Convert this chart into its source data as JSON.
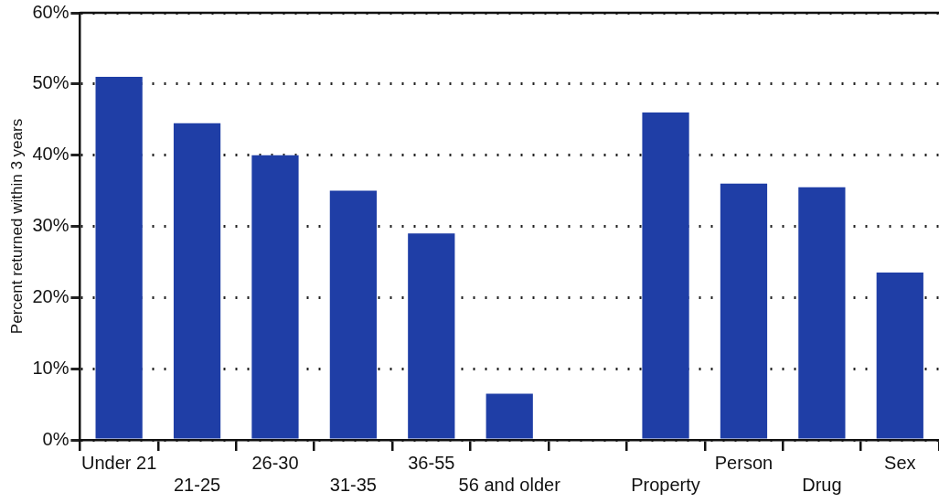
{
  "chart_data": {
    "type": "bar",
    "ylabel": "Percent returned within 3 years",
    "categories": [
      "Under 21",
      "21-25",
      "26-30",
      "31-35",
      "36-55",
      "56 and older",
      null,
      "Property",
      "Person",
      "Drug",
      "Sex"
    ],
    "values": [
      51,
      44.5,
      40,
      35,
      29,
      6.5,
      null,
      46,
      36,
      35.5,
      23.5
    ],
    "color": "#1f3ea6",
    "ylim": [
      0,
      60
    ],
    "yticks": [
      {
        "value": 0,
        "label": "0%"
      },
      {
        "value": 10,
        "label": "10%"
      },
      {
        "value": 20,
        "label": "20%"
      },
      {
        "value": 30,
        "label": "30%"
      },
      {
        "value": 40,
        "label": "40%"
      },
      {
        "value": 50,
        "label": "50%"
      },
      {
        "value": 60,
        "label": "60%"
      }
    ],
    "grid": "y",
    "legend": false
  }
}
